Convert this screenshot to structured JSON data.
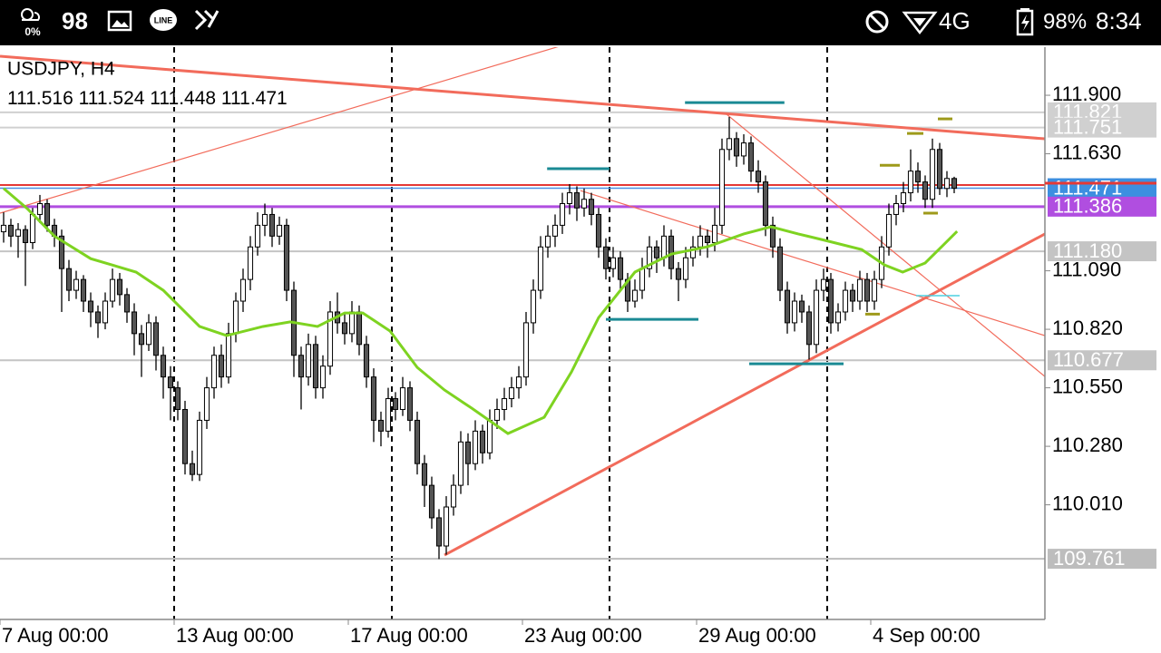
{
  "status_bar": {
    "weather": "0%",
    "count": "98",
    "line_icon": "LINE",
    "network": "4G",
    "battery": "98%",
    "time": "8:34"
  },
  "chart_data": {
    "type": "candlestick",
    "symbol": "USDJPY, H4",
    "ohlc": [
      [
        111.27,
        111.36,
        111.22,
        111.3
      ],
      [
        111.3,
        111.33,
        111.2,
        111.25
      ],
      [
        111.25,
        111.31,
        111.15,
        111.28
      ],
      [
        111.28,
        111.3,
        111.02,
        111.22
      ],
      [
        111.22,
        111.38,
        111.19,
        111.35
      ],
      [
        111.35,
        111.44,
        111.31,
        111.4
      ],
      [
        111.4,
        111.42,
        111.27,
        111.3
      ],
      [
        111.3,
        111.33,
        111.2,
        111.25
      ],
      [
        111.25,
        111.28,
        110.9,
        111.1
      ],
      [
        111.1,
        111.14,
        110.95,
        111.0
      ],
      [
        111.0,
        111.09,
        110.96,
        111.05
      ],
      [
        111.05,
        111.07,
        110.9,
        110.95
      ],
      [
        110.95,
        110.99,
        110.83,
        110.9
      ],
      [
        110.9,
        110.93,
        110.78,
        110.85
      ],
      [
        110.85,
        110.99,
        110.82,
        110.95
      ],
      [
        110.95,
        111.1,
        110.92,
        111.05
      ],
      [
        111.05,
        111.08,
        110.93,
        110.98
      ],
      [
        110.98,
        111.01,
        110.85,
        110.9
      ],
      [
        110.9,
        110.94,
        110.7,
        110.8
      ],
      [
        110.8,
        110.84,
        110.6,
        110.75
      ],
      [
        110.75,
        110.89,
        110.72,
        110.85
      ],
      [
        110.85,
        110.88,
        110.63,
        110.7
      ],
      [
        110.7,
        110.74,
        110.5,
        110.6
      ],
      [
        110.6,
        110.65,
        110.4,
        110.55
      ],
      [
        110.55,
        110.58,
        110.4,
        110.45
      ],
      [
        110.45,
        110.49,
        110.15,
        110.2
      ],
      [
        110.2,
        110.26,
        110.12,
        110.15
      ],
      [
        110.15,
        110.44,
        110.12,
        110.4
      ],
      [
        110.4,
        110.6,
        110.36,
        110.55
      ],
      [
        110.55,
        110.74,
        110.5,
        110.7
      ],
      [
        110.7,
        110.75,
        110.55,
        110.6
      ],
      [
        110.6,
        110.85,
        110.57,
        110.8
      ],
      [
        110.8,
        110.99,
        110.76,
        110.95
      ],
      [
        110.95,
        111.1,
        110.9,
        111.05
      ],
      [
        111.05,
        111.25,
        111.0,
        111.2
      ],
      [
        111.2,
        111.36,
        111.16,
        111.3
      ],
      [
        111.3,
        111.4,
        111.25,
        111.35
      ],
      [
        111.35,
        111.38,
        111.2,
        111.25
      ],
      [
        111.25,
        111.34,
        111.21,
        111.3
      ],
      [
        111.3,
        111.33,
        110.95,
        111.0
      ],
      [
        111.0,
        111.04,
        110.6,
        110.7
      ],
      [
        110.7,
        110.74,
        110.45,
        110.6
      ],
      [
        110.6,
        110.8,
        110.56,
        110.75
      ],
      [
        110.75,
        110.79,
        110.5,
        110.55
      ],
      [
        110.55,
        110.7,
        110.5,
        110.65
      ],
      [
        110.65,
        110.95,
        110.61,
        110.9
      ],
      [
        110.9,
        110.99,
        110.8,
        110.85
      ],
      [
        110.85,
        110.89,
        110.75,
        110.8
      ],
      [
        110.8,
        110.95,
        110.76,
        110.9
      ],
      [
        110.9,
        110.93,
        110.7,
        110.75
      ],
      [
        110.75,
        110.79,
        110.55,
        110.6
      ],
      [
        110.6,
        110.64,
        110.3,
        110.4
      ],
      [
        110.4,
        110.44,
        110.28,
        110.35
      ],
      [
        110.35,
        110.55,
        110.32,
        110.5
      ],
      [
        110.5,
        110.53,
        110.4,
        110.45
      ],
      [
        110.45,
        110.6,
        110.42,
        110.55
      ],
      [
        110.55,
        110.58,
        110.35,
        110.4
      ],
      [
        110.4,
        110.44,
        110.15,
        110.2
      ],
      [
        110.2,
        110.24,
        110.0,
        110.1
      ],
      [
        110.1,
        110.14,
        109.9,
        109.95
      ],
      [
        109.95,
        109.99,
        109.76,
        109.82
      ],
      [
        109.82,
        110.05,
        109.78,
        110.0
      ],
      [
        110.0,
        110.15,
        109.96,
        110.1
      ],
      [
        110.1,
        110.35,
        110.06,
        110.3
      ],
      [
        110.3,
        110.34,
        110.1,
        110.2
      ],
      [
        110.2,
        110.4,
        110.17,
        110.35
      ],
      [
        110.35,
        110.38,
        110.2,
        110.25
      ],
      [
        110.25,
        110.45,
        110.22,
        110.4
      ],
      [
        110.4,
        110.5,
        110.36,
        110.45
      ],
      [
        110.45,
        110.55,
        110.4,
        110.5
      ],
      [
        110.5,
        110.6,
        110.46,
        110.55
      ],
      [
        110.55,
        110.65,
        110.5,
        110.6
      ],
      [
        110.6,
        110.9,
        110.56,
        110.85
      ],
      [
        110.85,
        111.05,
        110.8,
        111.0
      ],
      [
        111.0,
        111.25,
        110.96,
        111.2
      ],
      [
        111.2,
        111.3,
        111.15,
        111.25
      ],
      [
        111.25,
        111.35,
        111.2,
        111.3
      ],
      [
        111.3,
        111.45,
        111.26,
        111.4
      ],
      [
        111.4,
        111.49,
        111.35,
        111.45
      ],
      [
        111.45,
        111.48,
        111.32,
        111.38
      ],
      [
        111.38,
        111.47,
        111.34,
        111.42
      ],
      [
        111.42,
        111.45,
        111.3,
        111.35
      ],
      [
        111.35,
        111.38,
        111.15,
        111.2
      ],
      [
        111.2,
        111.24,
        111.05,
        111.1
      ],
      [
        111.1,
        111.2,
        111.06,
        111.15
      ],
      [
        111.15,
        111.18,
        111.0,
        111.05
      ],
      [
        111.05,
        111.08,
        110.9,
        110.95
      ],
      [
        110.95,
        111.05,
        110.92,
        111.0
      ],
      [
        111.0,
        111.15,
        110.96,
        111.1
      ],
      [
        111.1,
        111.25,
        111.06,
        111.2
      ],
      [
        111.2,
        111.23,
        111.08,
        111.15
      ],
      [
        111.15,
        111.3,
        111.11,
        111.25
      ],
      [
        111.25,
        111.28,
        111.05,
        111.1
      ],
      [
        111.1,
        111.13,
        110.95,
        111.05
      ],
      [
        111.05,
        111.2,
        111.01,
        111.15
      ],
      [
        111.15,
        111.25,
        111.11,
        111.2
      ],
      [
        111.2,
        111.3,
        111.16,
        111.25
      ],
      [
        111.25,
        111.28,
        111.15,
        111.22
      ],
      [
        111.22,
        111.38,
        111.18,
        111.3
      ],
      [
        111.3,
        111.7,
        111.26,
        111.65
      ],
      [
        111.65,
        111.8,
        111.6,
        111.7
      ],
      [
        111.7,
        111.73,
        111.57,
        111.62
      ],
      [
        111.62,
        111.72,
        111.58,
        111.68
      ],
      [
        111.68,
        111.71,
        111.5,
        111.55
      ],
      [
        111.55,
        111.6,
        111.45,
        111.5
      ],
      [
        111.5,
        111.53,
        111.25,
        111.3
      ],
      [
        111.3,
        111.34,
        111.15,
        111.2
      ],
      [
        111.2,
        111.24,
        110.95,
        111.0
      ],
      [
        111.0,
        111.04,
        110.8,
        110.85
      ],
      [
        110.85,
        110.99,
        110.81,
        110.95
      ],
      [
        110.95,
        110.98,
        110.85,
        110.9
      ],
      [
        110.9,
        110.93,
        110.68,
        110.75
      ],
      [
        110.75,
        111.05,
        110.71,
        111.0
      ],
      [
        111.0,
        111.1,
        110.95,
        111.05
      ],
      [
        111.05,
        111.08,
        110.8,
        110.85
      ],
      [
        110.85,
        110.94,
        110.81,
        110.9
      ],
      [
        110.9,
        111.04,
        110.86,
        111.0
      ],
      [
        111.0,
        111.03,
        110.9,
        110.95
      ],
      [
        110.95,
        111.09,
        110.91,
        111.05
      ],
      [
        111.05,
        111.08,
        110.9,
        110.95
      ],
      [
        110.95,
        111.09,
        110.91,
        111.05
      ],
      [
        111.05,
        111.25,
        111.01,
        111.2
      ],
      [
        111.2,
        111.4,
        111.16,
        111.35
      ],
      [
        111.35,
        111.44,
        111.3,
        111.4
      ],
      [
        111.4,
        111.5,
        111.36,
        111.45
      ],
      [
        111.45,
        111.65,
        111.41,
        111.55
      ],
      [
        111.55,
        111.59,
        111.45,
        111.5
      ],
      [
        111.5,
        111.53,
        111.38,
        111.42
      ],
      [
        111.42,
        111.7,
        111.38,
        111.65
      ],
      [
        111.65,
        111.68,
        111.44,
        111.47
      ],
      [
        111.47,
        111.55,
        111.43,
        111.516
      ],
      [
        111.516,
        111.524,
        111.448,
        111.471
      ]
    ],
    "bull_color": "#ffffff",
    "bear_color": "#555555",
    "wick_color": "#000000",
    "xlim": [
      -0.5,
      143.5
    ],
    "ylim": [
      109.481,
      112.122
    ],
    "xticks": [
      {
        "value": -0.5,
        "label": "7 Aug 00:00"
      },
      {
        "value": 23.5,
        "label": "13 Aug 00:00"
      },
      {
        "value": 47.5,
        "label": "17 Aug 00:00"
      },
      {
        "value": 71.5,
        "label": "23 Aug 00:00"
      },
      {
        "value": 95.5,
        "label": "29 Aug 00:00"
      },
      {
        "value": 119.5,
        "label": "4 Sep 00:00"
      }
    ],
    "yticks": [
      {
        "value": 111.9,
        "label": "111.900"
      },
      {
        "value": 111.63,
        "label": "111.630"
      },
      {
        "value": 111.09,
        "label": "111.090"
      },
      {
        "value": 110.82,
        "label": "110.820"
      },
      {
        "value": 110.55,
        "label": "110.550"
      },
      {
        "value": 110.28,
        "label": "110.280"
      },
      {
        "value": 110.01,
        "label": "110.010"
      }
    ],
    "separators": [
      23.5,
      53.5,
      83.5,
      113.5
    ],
    "ma": {
      "color": "#7ed321",
      "x": [
        0,
        3.25,
        7,
        12,
        18.25,
        22,
        27,
        30.75,
        35.75,
        39.5,
        43.25,
        47,
        49.5,
        53.25,
        57,
        60.75,
        64.5,
        69.5,
        74.5,
        78.25,
        82,
        87,
        92,
        97,
        102,
        105.75,
        109.5,
        113.25,
        118.25,
        121.4,
        123.9,
        127,
        129.5,
        131.4
      ],
      "values": [
        111.47,
        111.377,
        111.25,
        111.146,
        111.084,
        111.0,
        110.833,
        110.791,
        110.833,
        110.854,
        110.833,
        110.895,
        110.895,
        110.812,
        110.644,
        110.54,
        110.456,
        110.339,
        110.414,
        110.623,
        110.874,
        111.084,
        111.167,
        111.201,
        111.26,
        111.293,
        111.26,
        111.23,
        111.188,
        111.117,
        111.084,
        111.126,
        111.209,
        111.272
      ]
    },
    "ask_line": {
      "price": 111.486,
      "color": "#e53935"
    },
    "price_lines": [
      {
        "price": 111.821,
        "color": "#d0d0d0",
        "width": 2
      },
      {
        "price": 111.751,
        "color": "#d0d0d0",
        "width": 2
      },
      {
        "price": 111.471,
        "color": "#4a90e2",
        "box": "#3d8fe0",
        "width": 1.5
      },
      {
        "price": 111.386,
        "color": "#b04ee0",
        "box": "#b04ee0",
        "width": 3
      },
      {
        "price": {
          "value": 111.18,
          "label": "111.180"
        },
        "color": "#c4c4c4",
        "width": 2
      },
      {
        "price": 110.677,
        "color": "#c4c4c4",
        "width": 2
      },
      {
        "price": 109.761,
        "color": "#bdbdbd",
        "width": 2
      }
    ],
    "trendlines": [
      {
        "color": "#f26b5b",
        "width": 3,
        "points": [
          [
            -0.5,
            112.08
          ],
          [
            143.5,
            111.699
          ]
        ]
      },
      {
        "color": "#f26b5b",
        "width": 1.2,
        "points": [
          [
            -0.5,
            111.356
          ],
          [
            77,
            112.13
          ]
        ]
      },
      {
        "color": "#f26b5b",
        "width": 1.2,
        "points": [
          [
            79.5,
            111.46
          ],
          [
            143.5,
            110.791
          ]
        ]
      },
      {
        "color": "#f26b5b",
        "width": 1.2,
        "points": [
          [
            99.5,
            111.816
          ],
          [
            143.5,
            110.602
          ]
        ]
      },
      {
        "color": "#f26b5b",
        "width": 3,
        "points": [
          [
            60.75,
            109.778
          ],
          [
            143.5,
            111.26
          ]
        ]
      }
    ],
    "segments": [
      {
        "color": "#1a8a94",
        "width": 3,
        "x": [
          74.9,
          83.5
        ],
        "price": 111.561
      },
      {
        "color": "#1a8a94",
        "width": 3,
        "x": [
          93.9,
          107.6
        ],
        "price": 111.866
      },
      {
        "color": "#1a8a94",
        "width": 3,
        "x": [
          83,
          95.75
        ],
        "price": 110.866
      },
      {
        "color": "#1a8a94",
        "width": 3,
        "x": [
          102.75,
          115.75
        ],
        "price": 110.661
      },
      {
        "color": "#4dd0e1",
        "width": 1.5,
        "x": [
          125.75,
          131.75
        ],
        "price": 110.975
      },
      {
        "color": "#9e9a1a",
        "width": 3,
        "x": [
          120.75,
          123.5
        ],
        "price": 111.577
      },
      {
        "color": "#9e9a1a",
        "width": 3,
        "x": [
          124.5,
          126.75
        ],
        "price": 111.724
      },
      {
        "color": "#9e9a1a",
        "width": 3,
        "x": [
          128.75,
          130.75
        ],
        "price": 111.791
      },
      {
        "color": "#9e9a1a",
        "width": 3,
        "x": [
          126.75,
          128.75
        ],
        "price": 111.356
      },
      {
        "color": "#9e9a1a",
        "width": 3,
        "x": [
          118.75,
          120.75
        ],
        "price": 110.89
      }
    ]
  }
}
